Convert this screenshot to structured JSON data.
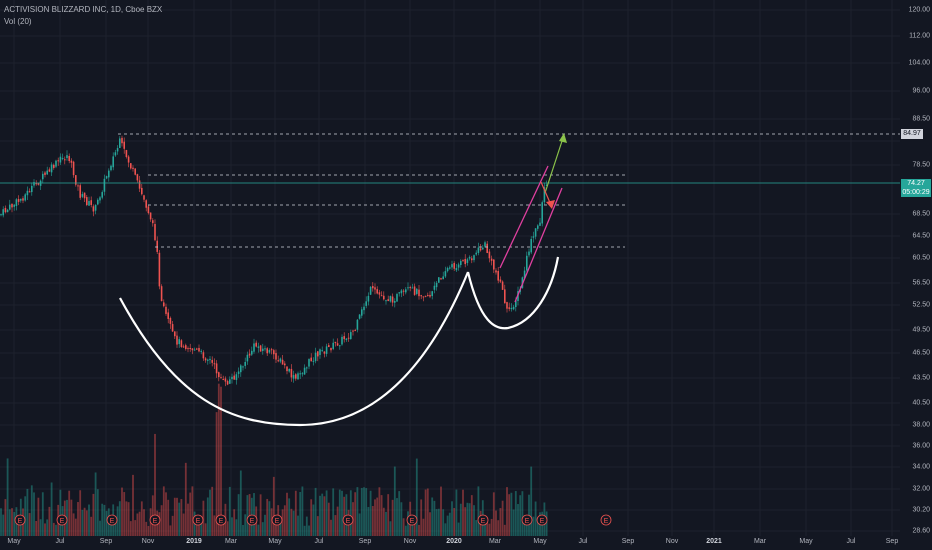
{
  "legend": {
    "symbol": "ACTIVISION BLIZZARD INC, 1D, Cboe BZX",
    "volume": "Vol (20)"
  },
  "price_axis": {
    "ticks": [
      "120.00",
      "112.00",
      "104.00",
      "96.00",
      "88.50",
      "84.97",
      "78.50",
      "74.27",
      "68.50",
      "64.50",
      "60.50",
      "56.50",
      "52.50",
      "49.50",
      "46.50",
      "43.50",
      "40.50",
      "38.00",
      "36.00",
      "34.00",
      "32.00",
      "30.20",
      "28.60"
    ],
    "level_badge": "84.97",
    "last_price": "74.27",
    "countdown": "05:00:29"
  },
  "time_axis": {
    "labels": [
      {
        "text": "May",
        "bold": false
      },
      {
        "text": "Jul",
        "bold": false
      },
      {
        "text": "Sep",
        "bold": false
      },
      {
        "text": "Nov",
        "bold": false
      },
      {
        "text": "2019",
        "bold": true
      },
      {
        "text": "Mar",
        "bold": false
      },
      {
        "text": "May",
        "bold": false
      },
      {
        "text": "Jul",
        "bold": false
      },
      {
        "text": "Sep",
        "bold": false
      },
      {
        "text": "Nov",
        "bold": false
      },
      {
        "text": "2020",
        "bold": true
      },
      {
        "text": "Mar",
        "bold": false
      },
      {
        "text": "May",
        "bold": false
      },
      {
        "text": "Jul",
        "bold": false
      },
      {
        "text": "Sep",
        "bold": false
      },
      {
        "text": "Nov",
        "bold": false
      },
      {
        "text": "2021",
        "bold": true
      },
      {
        "text": "Mar",
        "bold": false
      },
      {
        "text": "May",
        "bold": false
      },
      {
        "text": "Jul",
        "bold": false
      },
      {
        "text": "Sep",
        "bold": false
      }
    ]
  },
  "earnings_marker": "E",
  "colors": {
    "background": "#131722",
    "up": "#26a69a",
    "down": "#ef5350",
    "grid": "#1e222d",
    "current_price_line": "#26a69a",
    "pattern_curve": "#ffffff",
    "channel": "#e040a0",
    "target_arrow": "#8bc34a",
    "pullback_arrow": "#ef5350"
  }
}
